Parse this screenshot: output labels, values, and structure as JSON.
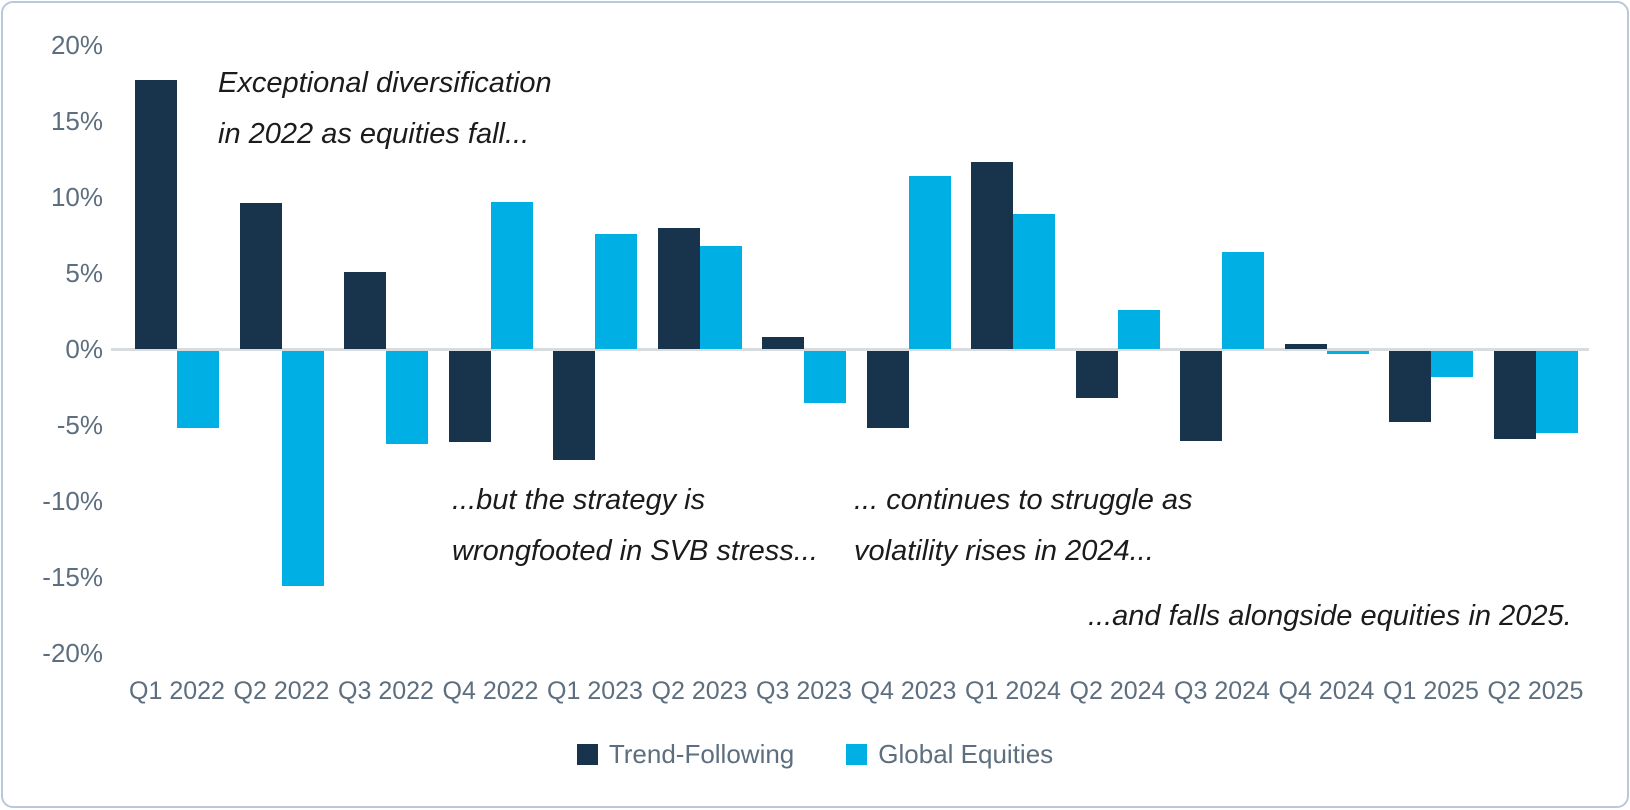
{
  "chart_data": {
    "type": "bar",
    "title": "",
    "categories": [
      "Q1 2022",
      "Q2 2022",
      "Q3 2022",
      "Q4 2022",
      "Q1 2023",
      "Q2 2023",
      "Q3 2023",
      "Q4 2023",
      "Q1 2024",
      "Q2 2024",
      "Q3 2024",
      "Q4 2024",
      "Q1 2025",
      "Q2 2025"
    ],
    "series": [
      {
        "name": "Trend-Following",
        "color": "#17344C",
        "values": [
          17.7,
          9.6,
          5.1,
          -6.0,
          -7.2,
          8.0,
          0.8,
          -5.1,
          12.3,
          -3.1,
          -5.9,
          0.3,
          -4.7,
          -5.8
        ]
      },
      {
        "name": "Global Equities",
        "color": "#00B0E4",
        "values": [
          -5.1,
          -15.5,
          -6.1,
          9.7,
          7.6,
          6.8,
          -3.4,
          11.4,
          8.9,
          2.6,
          6.4,
          -0.2,
          -1.7,
          -5.4
        ]
      }
    ],
    "xlabel": "",
    "ylabel": "",
    "ylim": [
      -20,
      20
    ],
    "y_ticks": [
      20,
      15,
      10,
      5,
      0,
      -5,
      -10,
      -15,
      -20
    ],
    "y_tick_labels": [
      "20%",
      "15%",
      "10%",
      "5%",
      "0%",
      "-5%",
      "-10%",
      "-15%",
      "-20%"
    ],
    "grid": "zero-line-only",
    "legend_position": "bottom-center"
  },
  "annotations": [
    {
      "lines": [
        "Exceptional diversification",
        "in 2022 as equities fall..."
      ]
    },
    {
      "lines": [
        "...but the strategy is",
        "wrongfooted in SVB stress..."
      ]
    },
    {
      "lines": [
        "... continues to struggle as",
        "volatility rises in 2024..."
      ]
    },
    {
      "lines": [
        "...and falls alongside equities in 2025."
      ]
    }
  ],
  "legend": {
    "items": [
      {
        "label": "Trend-Following",
        "color": "#17344C"
      },
      {
        "label": "Global Equities",
        "color": "#00B0E4"
      }
    ]
  },
  "colors": {
    "axis_line": "#D9DCDE",
    "tick_text": "#5D6E7F",
    "annotation_text": "#1B1B1B",
    "frame_border": "#B7C9DB",
    "background": "#FFFFFF"
  }
}
